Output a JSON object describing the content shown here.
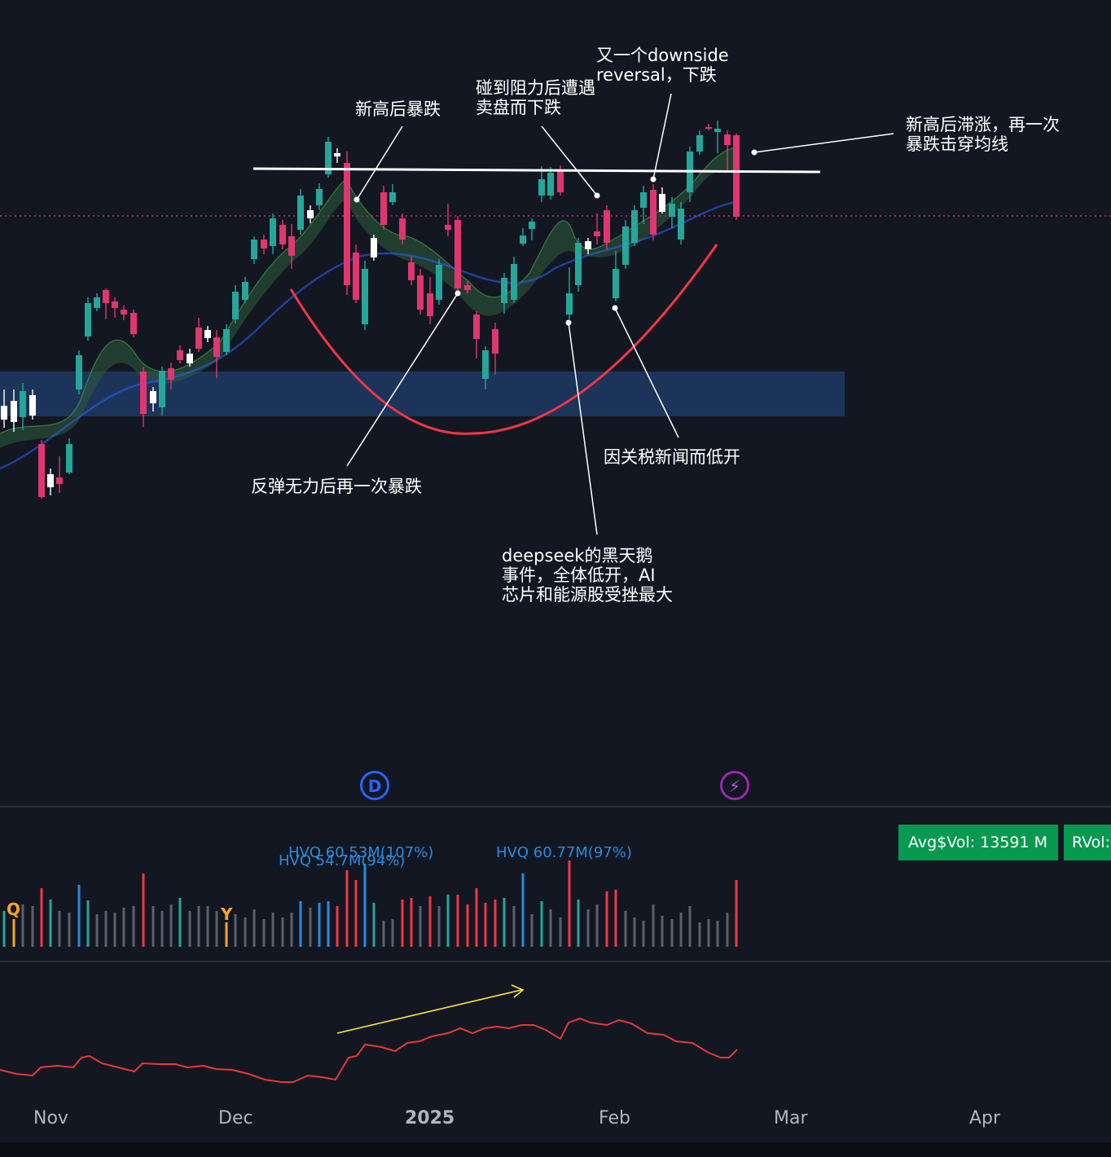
{
  "chart_data": {
    "type": "candlestick",
    "title": "",
    "x_axis": {
      "ticks": [
        {
          "label": "Nov",
          "bold": false
        },
        {
          "label": "Dec",
          "bold": false
        },
        {
          "label": "2025",
          "bold": true
        },
        {
          "label": "Feb",
          "bold": false
        },
        {
          "label": "Mar",
          "bold": false
        },
        {
          "label": "Apr",
          "bold": false
        }
      ]
    },
    "colors": {
      "up": "#26a69a",
      "down": "#e0366f",
      "zone": "#1f3a63",
      "curve": "#f23645",
      "resistance": "#ffffff",
      "ref_line": "#e0366f"
    },
    "annotations": [
      {
        "id": "a1",
        "text": "新高后暴跌"
      },
      {
        "id": "a2",
        "text": "碰到阻力后遭遇\n卖盘而下跌"
      },
      {
        "id": "a3",
        "text": "又一个downside\nreversal，下跌"
      },
      {
        "id": "a4",
        "text": "新高后滞涨，再一次\n暴跌击穿均线"
      },
      {
        "id": "a5",
        "text": "反弹无力后再一次暴跌"
      },
      {
        "id": "a6",
        "text": "因关税新闻而低开"
      },
      {
        "id": "a7",
        "text": "deepseek的黑天鹅\n事件，全体低开，AI\n芯片和能源股受挫最大"
      }
    ],
    "volume": {
      "labels": [
        "HVQ 60.53M(107%)",
        "HVQ 54.7M(94%)",
        "HVQ 60.77M(97%)"
      ],
      "markers": [
        "Q",
        "Y"
      ],
      "badges": {
        "avg_dollar_vol": "Avg$Vol: 13591 M",
        "rvol": "RVol:"
      }
    },
    "events": {
      "dividend": "D",
      "earnings": "⚡"
    }
  }
}
